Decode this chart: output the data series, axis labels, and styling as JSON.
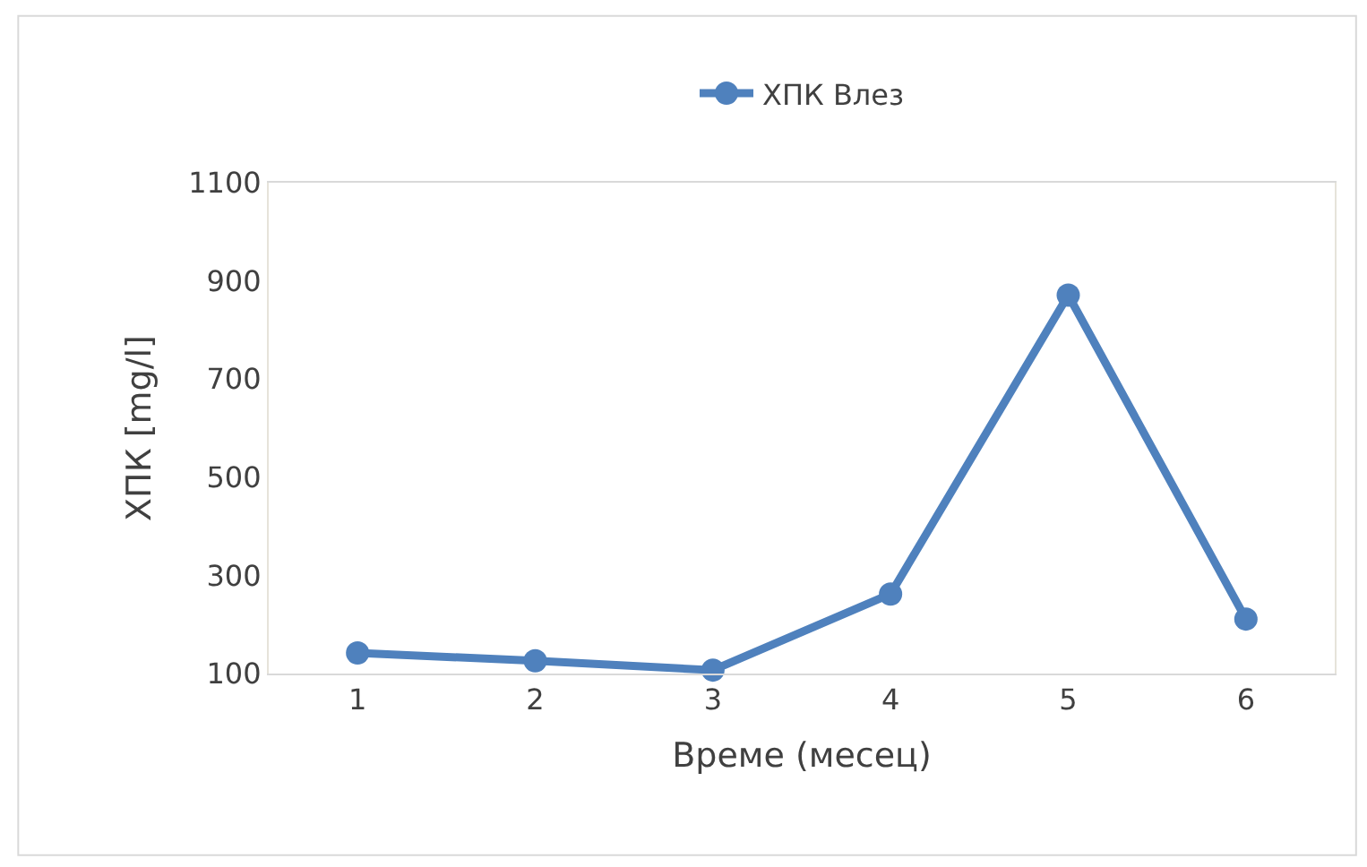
{
  "chart_data": {
    "type": "line",
    "xlabel": "Време (месец)",
    "ylabel": "ХПК [mg/l]",
    "categories": [
      "1",
      "2",
      "3",
      "4",
      "5",
      "6"
    ],
    "series": [
      {
        "name": "ХПК Влез",
        "color": "#4f81bd",
        "values": [
          142,
          126,
          107,
          262,
          871,
          211
        ]
      }
    ],
    "ylim": [
      100,
      1100
    ],
    "yticks": [
      100,
      300,
      500,
      700,
      900,
      1100
    ],
    "legend": "top",
    "marker": "circle",
    "line_style": "solid"
  }
}
